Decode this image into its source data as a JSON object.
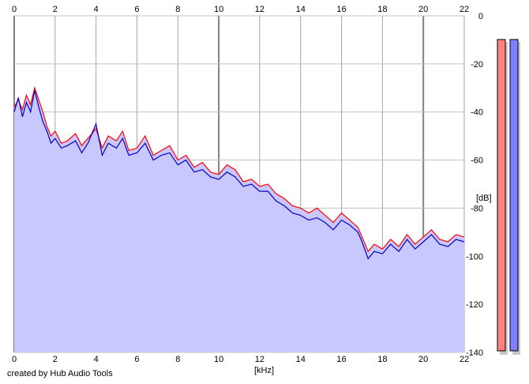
{
  "chart_data": {
    "type": "line",
    "xlabel": "[kHz]",
    "ylabel": "[dB]",
    "xlim": [
      0,
      22
    ],
    "ylim": [
      -140,
      0
    ],
    "x_ticks": [
      "0",
      "2",
      "4",
      "6",
      "8",
      "10",
      "12",
      "14",
      "16",
      "18",
      "20",
      "22"
    ],
    "y_ticks": [
      "0",
      "-20",
      "-40",
      "-60",
      "-80",
      "-100",
      "-120",
      "-140"
    ],
    "grid": true,
    "fill_color": "#c8c8ff",
    "series": [
      {
        "color": "#ff0000",
        "x": [
          0,
          0.2,
          0.4,
          0.6,
          0.8,
          1,
          1.2,
          1.4,
          1.6,
          1.8,
          2,
          2.3,
          2.6,
          3,
          3.3,
          3.6,
          4,
          4.3,
          4.6,
          5,
          5.3,
          5.6,
          6,
          6.4,
          6.8,
          7.2,
          7.6,
          8,
          8.4,
          8.8,
          9.2,
          9.6,
          10,
          10.4,
          10.8,
          11.2,
          11.6,
          12,
          12.4,
          12.8,
          13.2,
          13.6,
          14,
          14.4,
          14.8,
          15.2,
          15.6,
          16,
          16.4,
          16.8,
          17,
          17.3,
          17.6,
          18,
          18.4,
          18.8,
          19.2,
          19.6,
          20,
          20.4,
          20.8,
          21.2,
          21.6,
          22
        ],
        "values": [
          -38,
          -35,
          -39,
          -33,
          -37,
          -30,
          -35,
          -40,
          -46,
          -50,
          -48,
          -53,
          -52,
          -49,
          -54,
          -51,
          -47,
          -55,
          -50,
          -52,
          -48,
          -56,
          -55,
          -50,
          -58,
          -56,
          -54,
          -60,
          -58,
          -63,
          -61,
          -65,
          -66,
          -62,
          -64,
          -69,
          -68,
          -71,
          -70,
          -74,
          -76,
          -79,
          -80,
          -82,
          -80,
          -83,
          -86,
          -82,
          -85,
          -88,
          -92,
          -98,
          -95,
          -97,
          -93,
          -96,
          -91,
          -95,
          -92,
          -89,
          -93,
          -94,
          -91,
          -92
        ]
      },
      {
        "color": "#0000cc",
        "x": [
          0,
          0.2,
          0.4,
          0.6,
          0.8,
          1,
          1.2,
          1.4,
          1.6,
          1.8,
          2,
          2.3,
          2.6,
          3,
          3.3,
          3.6,
          4,
          4.3,
          4.6,
          5,
          5.3,
          5.6,
          6,
          6.4,
          6.8,
          7.2,
          7.6,
          8,
          8.4,
          8.8,
          9.2,
          9.6,
          10,
          10.4,
          10.8,
          11.2,
          11.6,
          12,
          12.4,
          12.8,
          13.2,
          13.6,
          14,
          14.4,
          14.8,
          15.2,
          15.6,
          16,
          16.4,
          16.8,
          17,
          17.3,
          17.6,
          18,
          18.4,
          18.8,
          19.2,
          19.6,
          20,
          20.4,
          20.8,
          21.2,
          21.6,
          22
        ],
        "values": [
          -40,
          -34,
          -42,
          -36,
          -40,
          -31,
          -38,
          -44,
          -48,
          -53,
          -51,
          -55,
          -54,
          -52,
          -57,
          -53,
          -45,
          -58,
          -53,
          -55,
          -51,
          -58,
          -57,
          -53,
          -60,
          -58,
          -57,
          -62,
          -60,
          -65,
          -64,
          -67,
          -68,
          -65,
          -67,
          -71,
          -70,
          -73,
          -73,
          -77,
          -79,
          -82,
          -83,
          -85,
          -84,
          -86,
          -89,
          -85,
          -87,
          -90,
          -94,
          -101,
          -98,
          -99,
          -95,
          -98,
          -93,
          -97,
          -94,
          -91,
          -95,
          -96,
          -93,
          -94
        ]
      }
    ],
    "level_meters": [
      {
        "color": "#ff8080",
        "value_db": -10
      },
      {
        "color": "#8080ff",
        "value_db": -10
      }
    ]
  },
  "footer": {
    "credit": "created by Hub Audio Tools"
  }
}
